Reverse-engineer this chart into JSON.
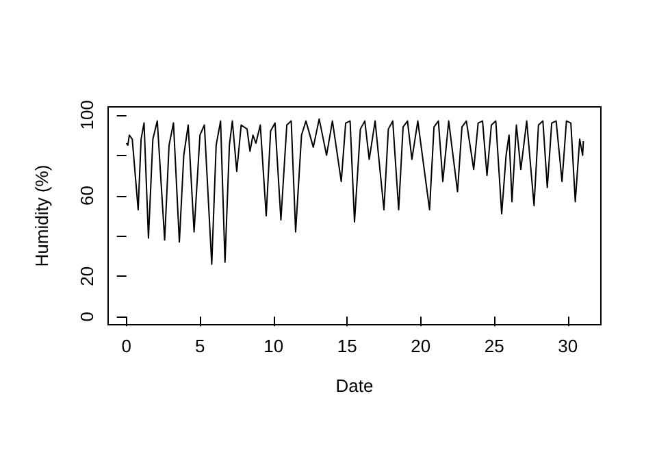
{
  "chart_data": {
    "type": "line",
    "xlabel": "Date",
    "ylabel": "Humidity (%)",
    "xlim": [
      -1.24,
      32.24
    ],
    "xticks": [
      0,
      5,
      10,
      15,
      20,
      25,
      30
    ],
    "ylim": [
      -4,
      104
    ],
    "yticks": [
      0,
      20,
      {
        "value": 40,
        "label": null
      },
      60,
      {
        "value": 80,
        "label": null
      },
      100
    ],
    "grid": false,
    "marker": "none",
    "line_style": "solid",
    "series": [
      {
        "color": "#000000",
        "x": [
          0,
          0.1,
          0.2,
          0.4,
          0.8,
          1.0,
          1.2,
          1.5,
          1.8,
          2.1,
          2.6,
          2.9,
          3.2,
          3.6,
          3.9,
          4.2,
          4.6,
          5.0,
          5.3,
          5.8,
          6.1,
          6.4,
          6.7,
          7.0,
          7.2,
          7.5,
          7.8,
          8.2,
          8.4,
          8.6,
          8.8,
          9.1,
          9.5,
          9.8,
          10.1,
          10.5,
          10.9,
          11.2,
          11.5,
          11.9,
          12.2,
          12.7,
          13.1,
          13.6,
          14.0,
          14.6,
          14.9,
          15.2,
          15.5,
          15.9,
          16.2,
          16.5,
          16.9,
          17.5,
          17.8,
          18.1,
          18.5,
          18.8,
          19.1,
          19.4,
          19.8,
          20.6,
          20.9,
          21.2,
          21.5,
          21.9,
          22.5,
          22.8,
          23.1,
          23.6,
          23.9,
          24.2,
          24.5,
          24.8,
          25.1,
          25.5,
          25.8,
          26.0,
          26.2,
          26.5,
          26.8,
          27.2,
          27.7,
          28.0,
          28.3,
          28.6,
          28.9,
          29.2,
          29.6,
          29.9,
          30.2,
          30.5,
          30.8,
          31.0,
          31.05
        ],
        "values": [
          86,
          85,
          90,
          88,
          53,
          88,
          96,
          39,
          88,
          97,
          38,
          85,
          96,
          37,
          80,
          95,
          42,
          90,
          95,
          26,
          85,
          97,
          27,
          85,
          97,
          72,
          95,
          93,
          82,
          90,
          86,
          95,
          50,
          92,
          96,
          48,
          95,
          97,
          42,
          90,
          97,
          84,
          98,
          80,
          97,
          67,
          96,
          97,
          47,
          93,
          97,
          78,
          97,
          53,
          93,
          97,
          53,
          94,
          97,
          78,
          97,
          53,
          94,
          97,
          67,
          97,
          62,
          94,
          97,
          73,
          96,
          97,
          70,
          95,
          97,
          51,
          80,
          90,
          57,
          95,
          73,
          97,
          55,
          95,
          97,
          64,
          96,
          97,
          67,
          97,
          96,
          57,
          88,
          80,
          87
        ]
      }
    ]
  }
}
